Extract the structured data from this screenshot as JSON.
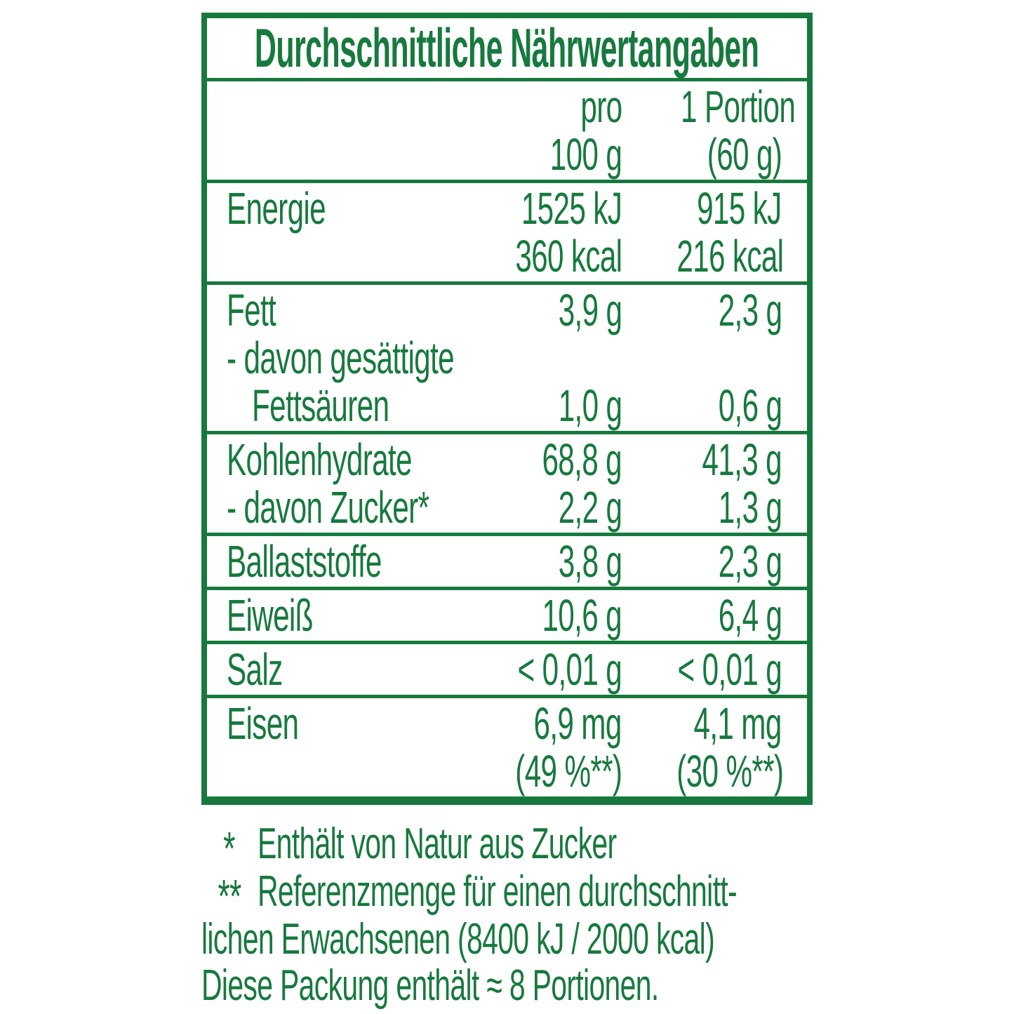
{
  "colors": {
    "green": "#17793e",
    "background": "#ffffff"
  },
  "table": {
    "title": "Durchschnittliche Nährwertangaben",
    "sections": [
      {
        "name": "header",
        "lines": [
          {
            "label": "",
            "v1": "pro",
            "v2": "1 Portion"
          },
          {
            "label": "",
            "v1": "100 g",
            "v2": "(60 g)"
          }
        ]
      },
      {
        "name": "energie",
        "lines": [
          {
            "label": "Energie",
            "v1": "1525 kJ",
            "v2": "915 kJ"
          },
          {
            "label": "",
            "v1": "360 kcal",
            "v2": "216 kcal"
          }
        ]
      },
      {
        "name": "fett",
        "lines": [
          {
            "label": "Fett",
            "v1": "3,9 g",
            "v2": "2,3 g"
          },
          {
            "label": "- davon gesättigte",
            "v1": "",
            "v2": ""
          },
          {
            "label": "Fettsäuren",
            "indent": true,
            "v1": "1,0 g",
            "v2": "0,6 g"
          }
        ]
      },
      {
        "name": "kohlenhydrate",
        "lines": [
          {
            "label": "Kohlenhydrate",
            "v1": "68,8 g",
            "v2": "41,3 g"
          },
          {
            "label": "- davon Zucker*",
            "v1": "2,2 g",
            "v2": "1,3 g"
          }
        ]
      },
      {
        "name": "ballaststoffe",
        "lines": [
          {
            "label": "Ballaststoffe",
            "v1": "3,8 g",
            "v2": "2,3 g"
          }
        ]
      },
      {
        "name": "eiweiss",
        "lines": [
          {
            "label": "Eiweiß",
            "v1": "10,6 g",
            "v2": "6,4 g"
          }
        ]
      },
      {
        "name": "salz",
        "lines": [
          {
            "label": "Salz",
            "v1": "< 0,01 g",
            "v2": "< 0,01 g"
          }
        ]
      },
      {
        "name": "eisen",
        "lines": [
          {
            "label": "Eisen",
            "v1": "6,9 mg",
            "v2": "4,1 mg"
          },
          {
            "label": "",
            "v1": "(49 %**)",
            "v2": "(30 %**)"
          }
        ]
      }
    ]
  },
  "footnotes": [
    {
      "marker": "*",
      "text": "Enthält von Natur aus Zucker"
    },
    {
      "marker": "**",
      "text": "Referenzmenge für einen durchschnitt-"
    },
    {
      "marker": "",
      "text": "lichen Erwachsenen (8400 kJ / 2000 kcal)"
    },
    {
      "marker": "",
      "text": "Diese Packung enthält ≈ 8 Portionen."
    }
  ]
}
